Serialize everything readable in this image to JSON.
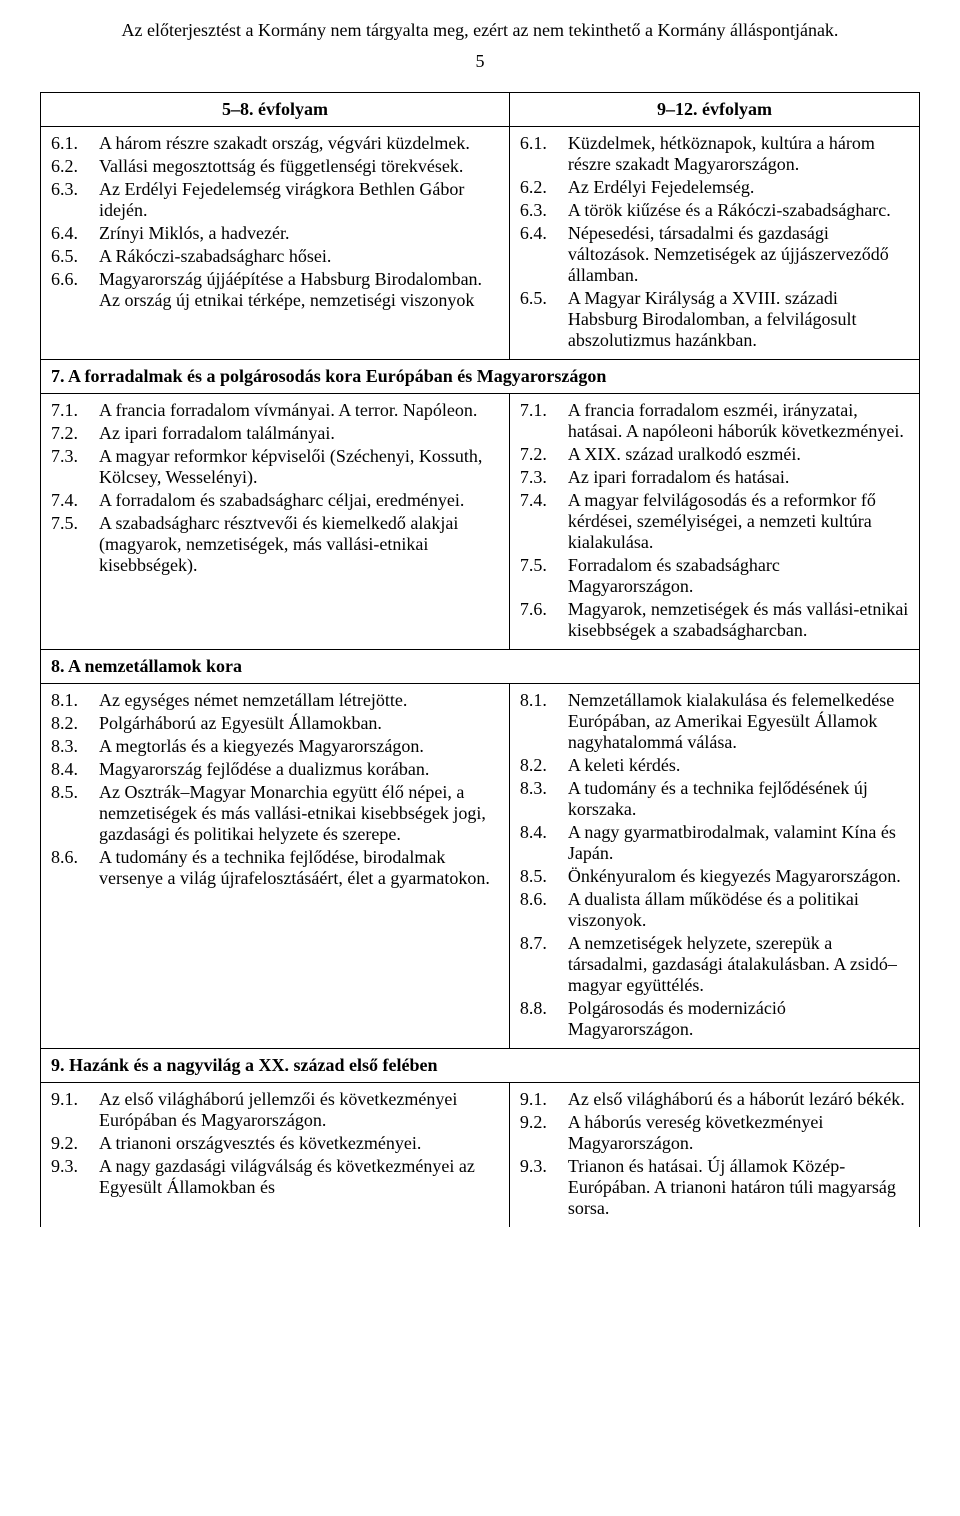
{
  "header_note": "Az előterjesztést a Kormány nem tárgyalta meg, ezért az nem tekinthető a Kormány álláspontjának.",
  "page_number": "5",
  "col_left_header": "5–8. évfolyam",
  "col_right_header": "9–12. évfolyam",
  "section6_left": [
    {
      "n": "6.1.",
      "t": "A három részre szakadt ország, végvári küzdelmek."
    },
    {
      "n": "6.2.",
      "t": "Vallási megosztottság és függetlenségi törekvések."
    },
    {
      "n": "6.3.",
      "t": "Az Erdélyi Fejedelemség virágkora Bethlen Gábor idején."
    },
    {
      "n": "6.4.",
      "t": "Zrínyi Miklós, a hadvezér."
    },
    {
      "n": "6.5.",
      "t": "A Rákóczi-szabadságharc hősei."
    },
    {
      "n": "6.6.",
      "t": "Magyarország újjáépítése a Habsburg Birodalomban. Az ország új etnikai térképe, nemzetiségi viszonyok"
    }
  ],
  "section6_right": [
    {
      "n": "6.1.",
      "t": "Küzdelmek, hétköznapok, kultúra a három részre szakadt Magyarországon."
    },
    {
      "n": "6.2.",
      "t": "Az Erdélyi Fejedelemség."
    },
    {
      "n": "6.3.",
      "t": "A török kiűzése és a Rákóczi-szabadságharc."
    },
    {
      "n": "6.4.",
      "t": "Népesedési, társadalmi és gazdasági változások. Nemzetiségek az újjászerveződő államban."
    },
    {
      "n": "6.5.",
      "t": "A Magyar Királyság a XVIII. századi Habsburg Birodalomban, a felvilágosult abszolutizmus hazánkban."
    }
  ],
  "section7_title": "7. A forradalmak és a polgárosodás kora Európában és Magyarországon",
  "section7_left": [
    {
      "n": "7.1.",
      "t": "A francia forradalom vívmányai. A terror. Napóleon."
    },
    {
      "n": "7.2.",
      "t": "Az ipari forradalom találmányai."
    },
    {
      "n": "7.3.",
      "t": "A magyar reformkor képviselői (Széchenyi, Kossuth, Kölcsey, Wesselényi)."
    },
    {
      "n": "7.4.",
      "t": "A forradalom és szabadságharc céljai, eredményei."
    },
    {
      "n": "7.5.",
      "t": "A szabadságharc résztvevői és kiemelkedő alakjai (magyarok, nemzetiségek, más vallási-etnikai kisebbségek)."
    }
  ],
  "section7_right": [
    {
      "n": "7.1.",
      "t": "A francia forradalom eszméi, irányzatai, hatásai. A napóleoni háborúk következményei."
    },
    {
      "n": "7.2.",
      "t": "A XIX. század uralkodó eszméi."
    },
    {
      "n": "7.3.",
      "t": "Az ipari forradalom és hatásai."
    },
    {
      "n": "7.4.",
      "t": "A magyar felvilágosodás és a reformkor fő kérdései, személyiségei, a nemzeti kultúra kialakulása."
    },
    {
      "n": "7.5.",
      "t": "Forradalom és szabadságharc Magyarországon."
    },
    {
      "n": "7.6.",
      "t": "Magyarok, nemzetiségek és más vallási-etnikai kisebbségek a szabadságharcban."
    }
  ],
  "section8_title": "8. A nemzetállamok kora",
  "section8_left": [
    {
      "n": "8.1.",
      "t": "Az egységes német nemzetállam létrejötte."
    },
    {
      "n": "8.2.",
      "t": "Polgárháború az Egyesült Államokban."
    },
    {
      "n": "8.3.",
      "t": "A megtorlás és a kiegyezés Magyarországon."
    },
    {
      "n": "8.4.",
      "t": "Magyarország fejlődése a dualizmus korában."
    },
    {
      "n": "8.5.",
      "t": "Az Osztrák–Magyar Monarchia együtt élő népei, a nemzetiségek és más vallási-etnikai kisebbségek jogi, gazdasági és politikai helyzete és szerepe."
    },
    {
      "n": "8.6.",
      "t": "A tudomány és a technika fejlődése, birodalmak versenye a világ újrafelosztásáért, élet a gyarmatokon."
    }
  ],
  "section8_right": [
    {
      "n": "8.1.",
      "t": "Nemzetállamok kialakulása és felemelkedése Európában, az Amerikai Egyesült Államok nagyhatalommá válása."
    },
    {
      "n": "8.2.",
      "t": "A keleti kérdés."
    },
    {
      "n": "8.3.",
      "t": "A tudomány és a technika fejlődésének új korszaka."
    },
    {
      "n": "8.4.",
      "t": "A nagy gyarmatbirodalmak, valamint Kína és Japán."
    },
    {
      "n": "8.5.",
      "t": "Önkényuralom és kiegyezés Magyarországon."
    },
    {
      "n": "8.6.",
      "t": "A dualista állam működése és a politikai viszonyok."
    },
    {
      "n": "8.7.",
      "t": "A nemzetiségek helyzete, szerepük a társadalmi, gazdasági átalakulásban. A zsidó–magyar együttélés."
    },
    {
      "n": "8.8.",
      "t": "Polgárosodás és modernizáció Magyarországon."
    }
  ],
  "section9_title": "9. Hazánk és a nagyvilág a XX. század első felében",
  "section9_left": [
    {
      "n": "9.1.",
      "t": "Az első világháború jellemzői és következményei Európában és Magyarországon."
    },
    {
      "n": "9.2.",
      "t": "A trianoni országvesztés és következményei."
    },
    {
      "n": "9.3.",
      "t": "A nagy gazdasági világválság és következményei az Egyesült Államokban és"
    }
  ],
  "section9_right": [
    {
      "n": "9.1.",
      "t": "Az első világháború és a háborút lezáró békék."
    },
    {
      "n": "9.2.",
      "t": "A háborús vereség következményei Magyarországon."
    },
    {
      "n": "9.3.",
      "t": "Trianon és hatásai. Új államok Közép-Európában. A trianoni határon túli magyarság sorsa."
    }
  ]
}
